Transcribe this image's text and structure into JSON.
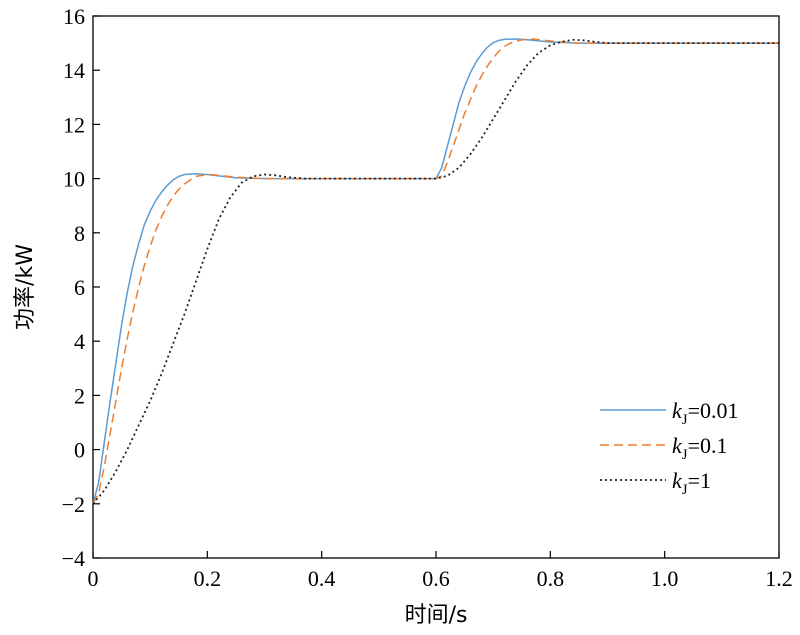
{
  "chart_data": {
    "type": "line",
    "title": "",
    "xlabel": "时间/s",
    "ylabel": "功率/kW",
    "xlim": [
      0,
      1.2
    ],
    "ylim": [
      -4,
      16
    ],
    "xticks": [
      "0",
      "0.2",
      "0.4",
      "0.6",
      "0.8",
      "1.0",
      "1.2"
    ],
    "yticks": [
      "−4",
      "−2",
      "0",
      "2",
      "4",
      "6",
      "8",
      "10",
      "12",
      "14",
      "16"
    ],
    "grid": false,
    "legend_position": "bottom-right",
    "series": [
      {
        "name": "kJ=0.01",
        "legend": {
          "var": "k",
          "sub": "J",
          "rest": "=0.01"
        },
        "color": "#5b9bd5",
        "style": "solid",
        "points": [
          [
            0,
            -2.0
          ],
          [
            0.01,
            -1.2
          ],
          [
            0.02,
            0.3
          ],
          [
            0.03,
            1.8
          ],
          [
            0.04,
            3.2
          ],
          [
            0.05,
            4.6
          ],
          [
            0.06,
            5.8
          ],
          [
            0.07,
            6.8
          ],
          [
            0.08,
            7.6
          ],
          [
            0.09,
            8.3
          ],
          [
            0.1,
            8.8
          ],
          [
            0.11,
            9.2
          ],
          [
            0.12,
            9.5
          ],
          [
            0.13,
            9.75
          ],
          [
            0.14,
            9.95
          ],
          [
            0.15,
            10.08
          ],
          [
            0.16,
            10.15
          ],
          [
            0.18,
            10.18
          ],
          [
            0.2,
            10.15
          ],
          [
            0.22,
            10.1
          ],
          [
            0.25,
            10.03
          ],
          [
            0.3,
            10.0
          ],
          [
            0.4,
            10.0
          ],
          [
            0.5,
            10.0
          ],
          [
            0.6,
            10.0
          ],
          [
            0.61,
            10.4
          ],
          [
            0.62,
            11.2
          ],
          [
            0.63,
            12.0
          ],
          [
            0.64,
            12.8
          ],
          [
            0.65,
            13.4
          ],
          [
            0.66,
            13.9
          ],
          [
            0.67,
            14.3
          ],
          [
            0.68,
            14.6
          ],
          [
            0.69,
            14.85
          ],
          [
            0.7,
            15.02
          ],
          [
            0.71,
            15.1
          ],
          [
            0.72,
            15.14
          ],
          [
            0.74,
            15.15
          ],
          [
            0.76,
            15.12
          ],
          [
            0.78,
            15.08
          ],
          [
            0.8,
            15.04
          ],
          [
            0.85,
            15.0
          ],
          [
            1.0,
            15.0
          ],
          [
            1.2,
            15.0
          ]
        ]
      },
      {
        "name": "kJ=0.1",
        "legend": {
          "var": "k",
          "sub": "J",
          "rest": "=0.1"
        },
        "color": "#ed7d31",
        "style": "dashed",
        "points": [
          [
            0,
            -2.0
          ],
          [
            0.01,
            -1.6
          ],
          [
            0.02,
            -0.6
          ],
          [
            0.03,
            0.6
          ],
          [
            0.04,
            1.8
          ],
          [
            0.05,
            3.0
          ],
          [
            0.06,
            4.1
          ],
          [
            0.07,
            5.1
          ],
          [
            0.08,
            6.0
          ],
          [
            0.09,
            6.8
          ],
          [
            0.1,
            7.5
          ],
          [
            0.11,
            8.1
          ],
          [
            0.12,
            8.6
          ],
          [
            0.13,
            9.0
          ],
          [
            0.14,
            9.35
          ],
          [
            0.15,
            9.6
          ],
          [
            0.16,
            9.8
          ],
          [
            0.17,
            9.95
          ],
          [
            0.18,
            10.08
          ],
          [
            0.2,
            10.15
          ],
          [
            0.22,
            10.12
          ],
          [
            0.25,
            10.05
          ],
          [
            0.3,
            10.0
          ],
          [
            0.4,
            10.0
          ],
          [
            0.5,
            10.0
          ],
          [
            0.6,
            10.0
          ],
          [
            0.61,
            10.1
          ],
          [
            0.62,
            10.6
          ],
          [
            0.63,
            11.2
          ],
          [
            0.64,
            11.8
          ],
          [
            0.65,
            12.4
          ],
          [
            0.66,
            12.9
          ],
          [
            0.67,
            13.4
          ],
          [
            0.68,
            13.8
          ],
          [
            0.69,
            14.15
          ],
          [
            0.7,
            14.45
          ],
          [
            0.71,
            14.7
          ],
          [
            0.72,
            14.88
          ],
          [
            0.73,
            15.0
          ],
          [
            0.75,
            15.12
          ],
          [
            0.77,
            15.15
          ],
          [
            0.79,
            15.1
          ],
          [
            0.82,
            15.04
          ],
          [
            0.85,
            15.0
          ],
          [
            1.0,
            15.0
          ],
          [
            1.2,
            15.0
          ]
        ]
      },
      {
        "name": "kJ=1",
        "legend": {
          "var": "k",
          "sub": "J",
          "rest": "=1"
        },
        "color": "#222222",
        "style": "dotted",
        "points": [
          [
            0,
            -2.0
          ],
          [
            0.02,
            -1.5
          ],
          [
            0.04,
            -0.8
          ],
          [
            0.06,
            0.0
          ],
          [
            0.08,
            0.9
          ],
          [
            0.1,
            1.8
          ],
          [
            0.12,
            2.8
          ],
          [
            0.14,
            3.9
          ],
          [
            0.16,
            5.0
          ],
          [
            0.18,
            6.2
          ],
          [
            0.2,
            7.4
          ],
          [
            0.22,
            8.5
          ],
          [
            0.24,
            9.3
          ],
          [
            0.26,
            9.85
          ],
          [
            0.28,
            10.08
          ],
          [
            0.3,
            10.15
          ],
          [
            0.32,
            10.12
          ],
          [
            0.34,
            10.05
          ],
          [
            0.37,
            10.0
          ],
          [
            0.45,
            10.0
          ],
          [
            0.55,
            10.0
          ],
          [
            0.6,
            10.0
          ],
          [
            0.62,
            10.1
          ],
          [
            0.64,
            10.4
          ],
          [
            0.66,
            10.9
          ],
          [
            0.68,
            11.5
          ],
          [
            0.7,
            12.2
          ],
          [
            0.72,
            12.9
          ],
          [
            0.74,
            13.6
          ],
          [
            0.76,
            14.2
          ],
          [
            0.78,
            14.65
          ],
          [
            0.8,
            14.92
          ],
          [
            0.82,
            15.05
          ],
          [
            0.84,
            15.12
          ],
          [
            0.86,
            15.1
          ],
          [
            0.88,
            15.04
          ],
          [
            0.9,
            15.0
          ],
          [
            1.0,
            15.0
          ],
          [
            1.2,
            15.0
          ]
        ]
      }
    ]
  }
}
